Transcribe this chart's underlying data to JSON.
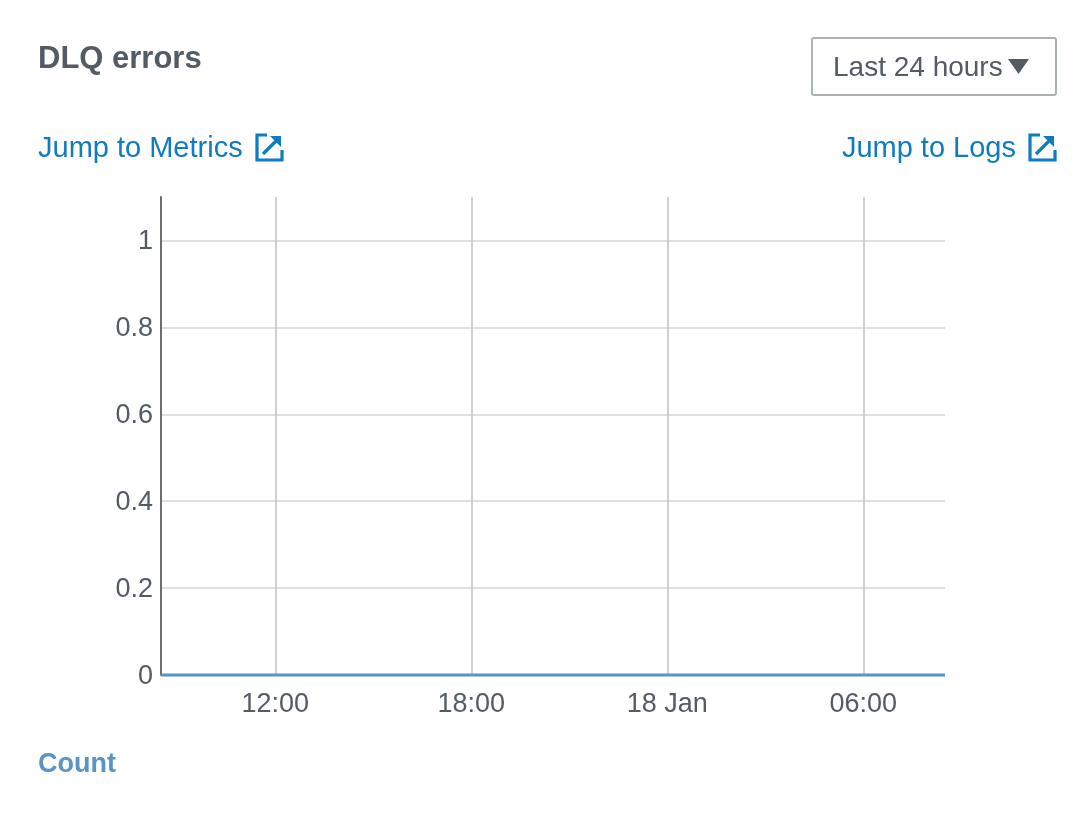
{
  "chart_data": {
    "type": "line",
    "title": "DLQ errors",
    "annotations": [
      "Last 24 hours",
      "Jump to Metrics",
      "Jump to Logs"
    ],
    "x": [
      "--01-17T08:30",
      "--01-18T08:30"
    ],
    "series": [
      {
        "name": "Count",
        "color": "#5a93c6",
        "values": [
          0,
          0
        ]
      }
    ],
    "xlim": [
      "--01-17T08:30",
      "--01-18T08:30"
    ],
    "xticks": [
      {
        "value": "--01-17T12:00",
        "label": "12:00"
      },
      {
        "value": "--01-17T18:00",
        "label": "18:00"
      },
      {
        "value": "--01-18T00:00",
        "label": "18 Jan"
      },
      {
        "value": "--01-18T06:00",
        "label": "06:00"
      }
    ],
    "ylim": [
      0,
      1.1
    ],
    "yticks": [
      0,
      0.2,
      0.4,
      0.6,
      0.8,
      1
    ],
    "grid": true,
    "legend": "bottom left",
    "marker": "none",
    "line_style": "solid"
  }
}
